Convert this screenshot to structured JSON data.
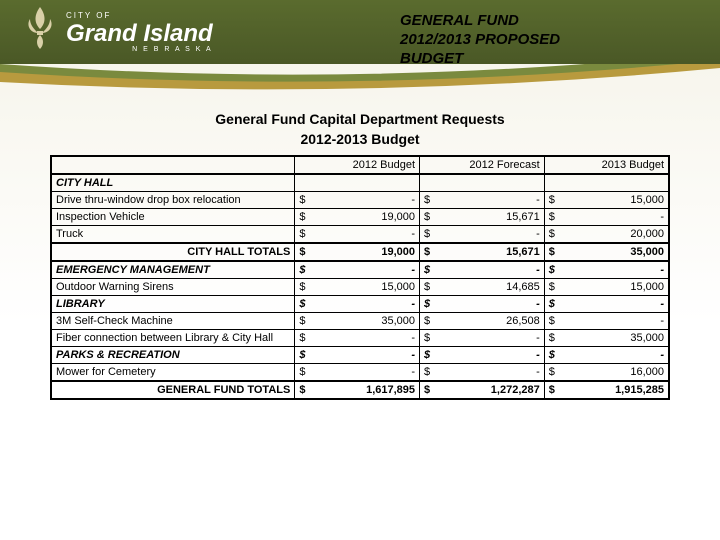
{
  "header": {
    "logo_cityof": "CITY OF",
    "logo_name": "Grand Island",
    "logo_state": "N E B R A S K A"
  },
  "page_title_line1": "GENERAL FUND",
  "page_title_line2": "2012/2013 PROPOSED",
  "page_title_line3": "BUDGET",
  "table": {
    "title_line1": "General Fund Capital Department Requests",
    "title_line2": "2012-2013 Budget",
    "columns": [
      "2012 Budget",
      "2012 Forecast",
      "2013 Budget"
    ],
    "currency_symbol": "$",
    "sections": [
      {
        "name": "CITY HALL",
        "rows": [
          {
            "label": "Drive thru-window drop box relocation",
            "vals": [
              "-",
              "-",
              "15,000"
            ]
          },
          {
            "label": "Inspection Vehicle",
            "vals": [
              "19,000",
              "15,671",
              "-"
            ]
          },
          {
            "label": "Truck",
            "vals": [
              "-",
              "-",
              "20,000"
            ]
          }
        ],
        "totals": {
          "label": "CITY HALL TOTALS",
          "vals": [
            "19,000",
            "15,671",
            "35,000"
          ]
        }
      },
      {
        "name": "EMERGENCY MANAGEMENT",
        "section_vals": [
          "-",
          "-",
          "-"
        ],
        "rows": [
          {
            "label": "Outdoor Warning Sirens",
            "vals": [
              "15,000",
              "14,685",
              "15,000"
            ]
          }
        ]
      },
      {
        "name": "LIBRARY",
        "section_vals": [
          "-",
          "-",
          "-"
        ],
        "rows": [
          {
            "label": "3M Self-Check Machine",
            "vals": [
              "35,000",
              "26,508",
              "-"
            ]
          },
          {
            "label": "Fiber connection between Library & City Hall",
            "vals": [
              "-",
              "-",
              "35,000"
            ]
          }
        ]
      },
      {
        "name": "PARKS & RECREATION",
        "section_vals": [
          "-",
          "-",
          "-"
        ],
        "rows": [
          {
            "label": "Mower for Cemetery",
            "vals": [
              "-",
              "-",
              "16,000"
            ]
          }
        ]
      }
    ],
    "grand_totals": {
      "label": "GENERAL FUND TOTALS",
      "vals": [
        "1,617,895",
        "1,272,287",
        "1,915,285"
      ]
    }
  },
  "colors": {
    "header_bg_top": "#5a6b2e",
    "header_bg_bottom": "#4a5826",
    "page_bg_top": "#f5f3e8",
    "swoosh_green": "#7a8a3e",
    "swoosh_gold": "#b89a3e",
    "text": "#000000",
    "logo_text": "#ffffff"
  }
}
